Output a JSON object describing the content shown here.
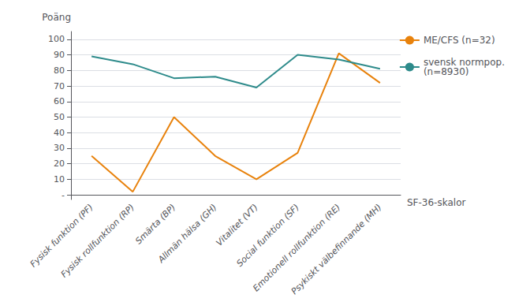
{
  "chart_data": {
    "type": "line",
    "categories": [
      "Fysisk funktion (PF)",
      "Fysisk rollfunktion (RP)",
      "Smärta (BP)",
      "Allmän hälsa (GH)",
      "Vitalitet (VT)",
      "Social funktion (SF)",
      "Emotionell rollfunktion (RE)",
      "Psykiskt välbefinnande (MH)"
    ],
    "series": [
      {
        "name": "ME/CFS (n=32)",
        "color": "#E8820C",
        "values": [
          25,
          2,
          50,
          25,
          10,
          27,
          91,
          72
        ]
      },
      {
        "name": "svensk normpop.\n(n=8930)",
        "color": "#2E8B8B",
        "values": [
          89,
          84,
          75,
          76,
          69,
          90,
          87,
          81
        ]
      }
    ],
    "marker": "none",
    "xlabel": "SF-36-skalor",
    "ylabel": "Poäng",
    "ylim": [
      -3,
      105
    ],
    "yticks": [
      {
        "value": 0,
        "label": "-"
      },
      10,
      20,
      30,
      40,
      50,
      60,
      70,
      80,
      90,
      100
    ],
    "grid": true,
    "legend": "upper right"
  }
}
